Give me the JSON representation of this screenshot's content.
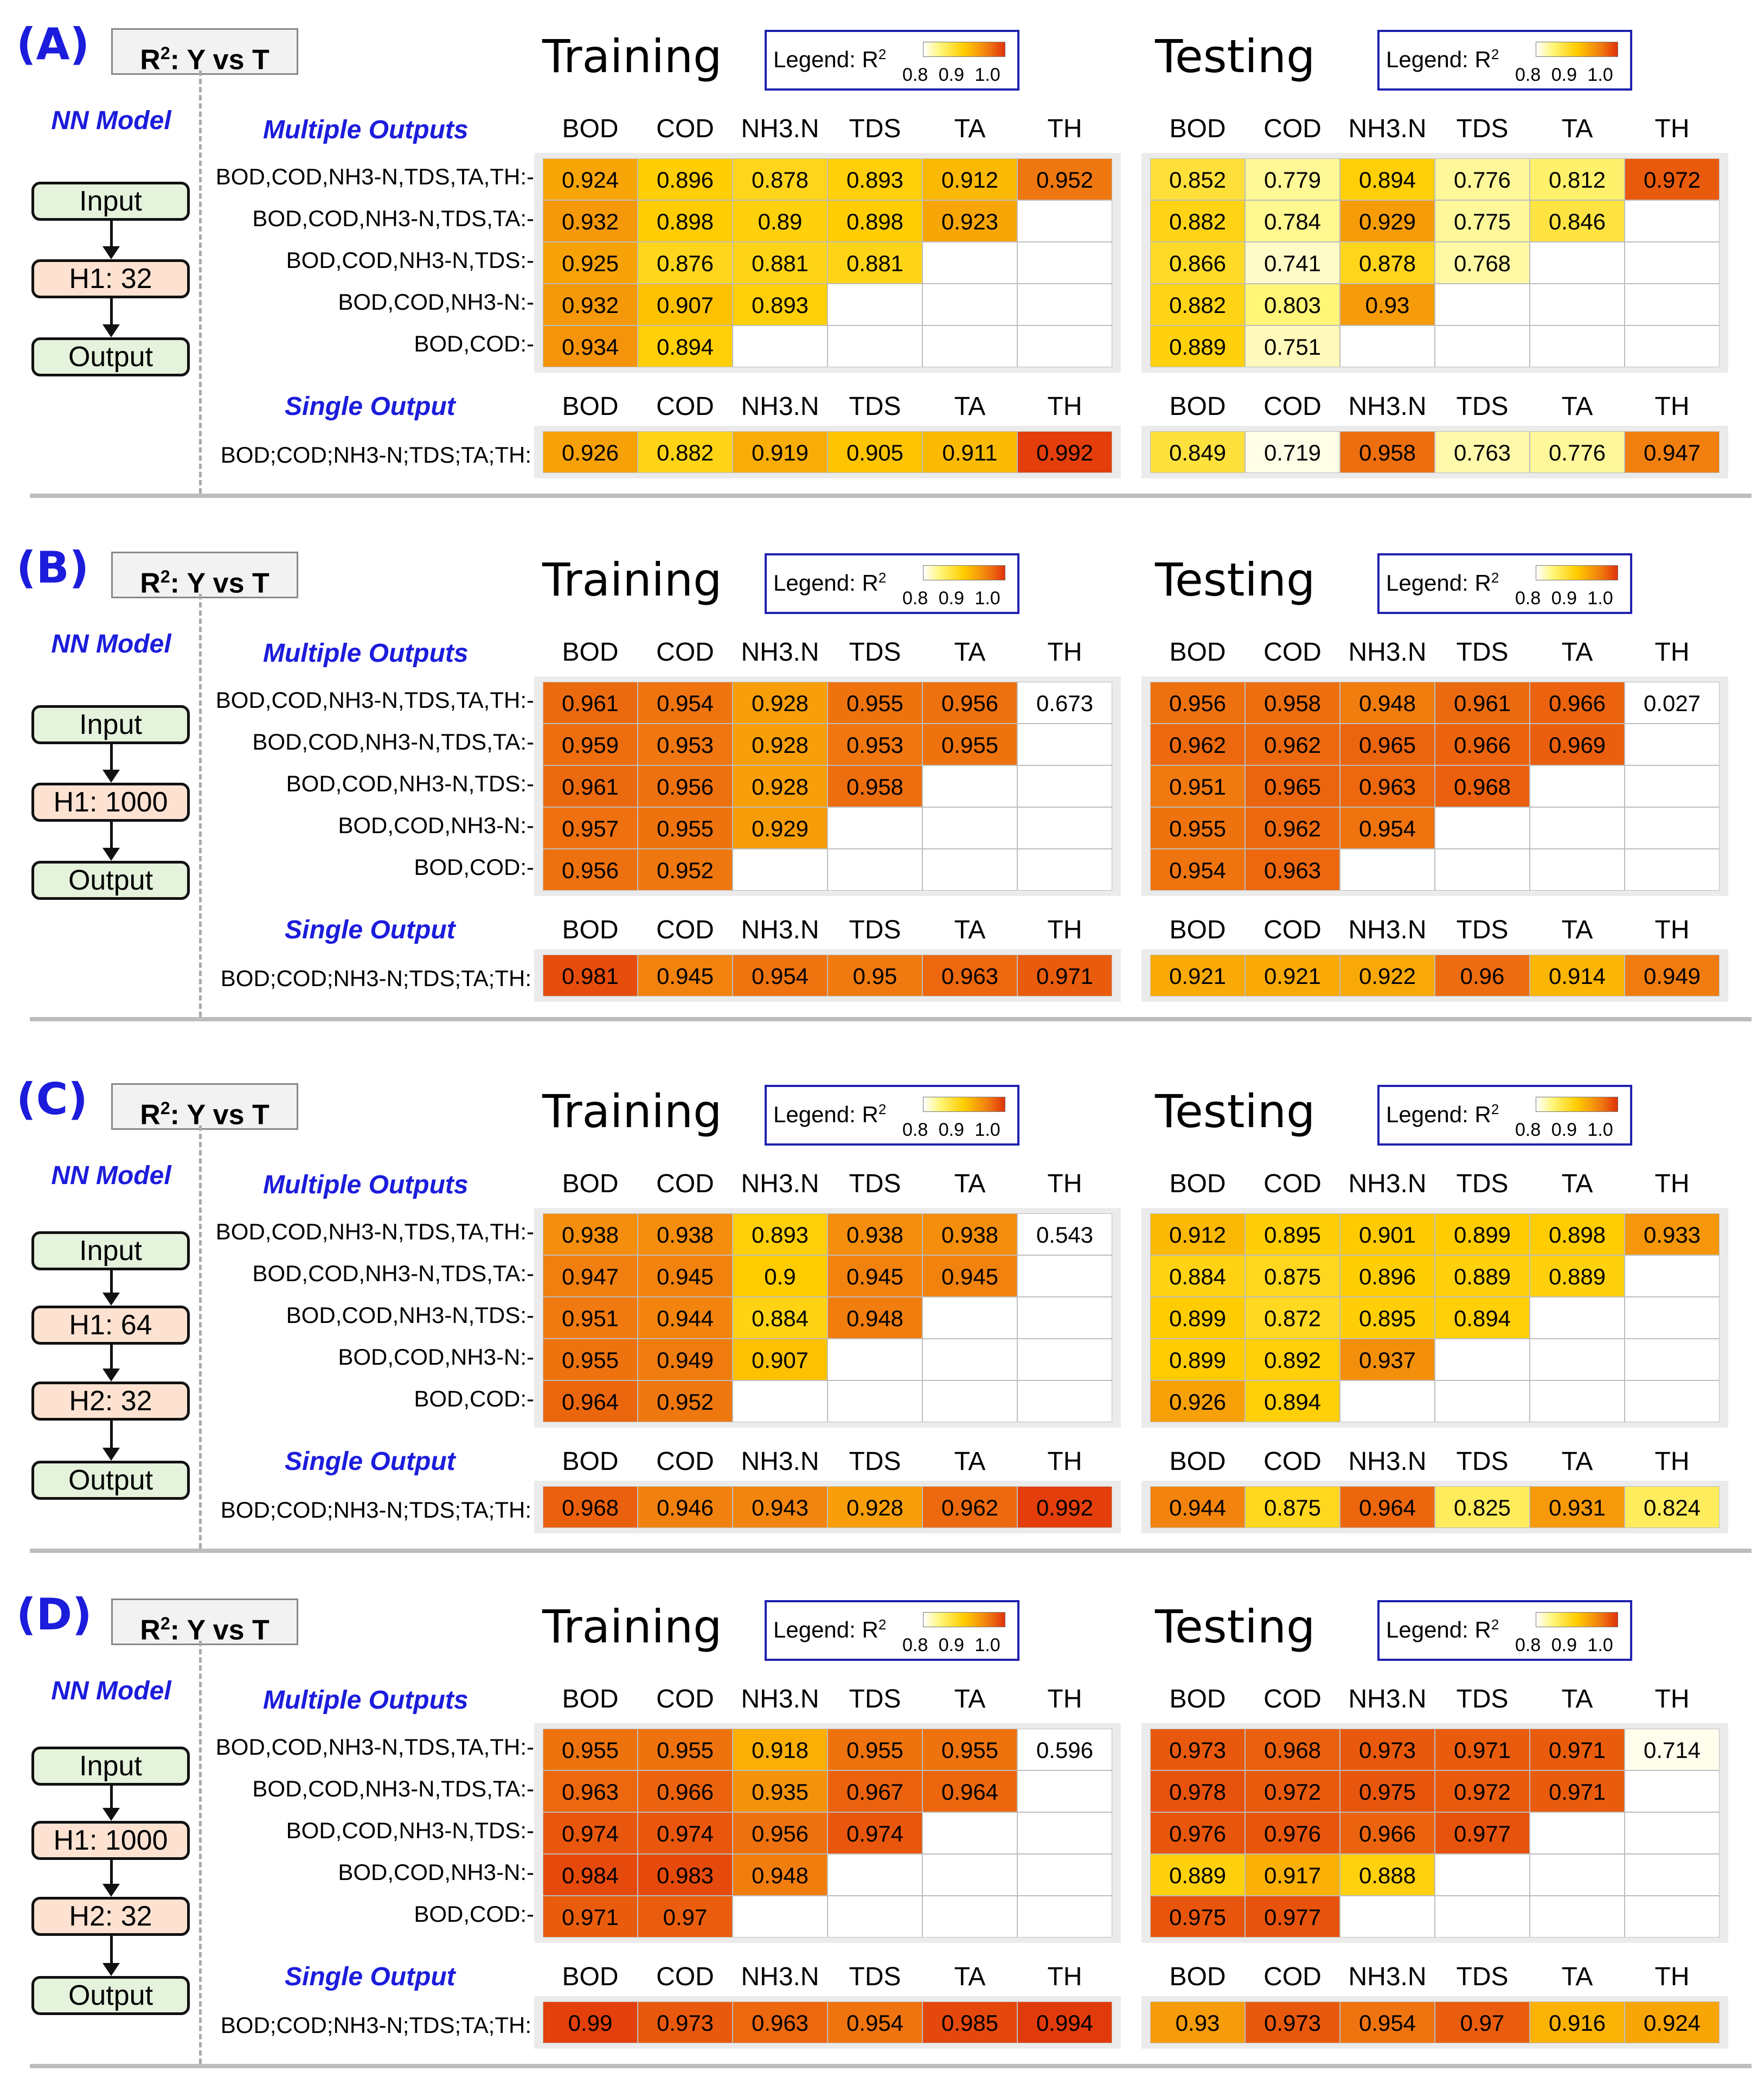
{
  "titles": {
    "yvt": "Y vs T",
    "r2": "R",
    "sup2": "2",
    "nn_model": "NN Model",
    "training": "Training",
    "testing": "Testing",
    "multiple_outputs": "Multiple Outputs",
    "single_output": "Single Output"
  },
  "legend": {
    "text": "Legend: R",
    "sup": "2",
    "ticks": "0.8 0.9 1.0",
    "colors": [
      "#ffffff",
      "#fff67a",
      "#ffcc00",
      "#f07a10",
      "#e0320a"
    ]
  },
  "columns": [
    "BOD",
    "COD",
    "NH3.N",
    "TDS",
    "TA",
    "TH"
  ],
  "multi_row_labels": [
    "BOD,COD,NH3-N,TDS,TA,TH:-",
    "BOD,COD,NH3-N,TDS,TA:-",
    "BOD,COD,NH3-N,TDS:-",
    "BOD,COD,NH3-N:-",
    "BOD,COD:-"
  ],
  "single_row_label": "BOD;COD;NH3-N;TDS;TA;TH:",
  "chart_data": [
    {
      "type": "heatmap",
      "panel": "(A)",
      "model": [
        "Input",
        "H1: 32",
        "Output"
      ],
      "training": {
        "multiple": [
          [
            0.924,
            0.896,
            0.878,
            0.893,
            0.912,
            0.952
          ],
          [
            0.932,
            0.898,
            0.89,
            0.898,
            0.923
          ],
          [
            0.925,
            0.876,
            0.881,
            0.881
          ],
          [
            0.932,
            0.907,
            0.893
          ],
          [
            0.934,
            0.894
          ]
        ],
        "single": [
          0.926,
          0.882,
          0.919,
          0.905,
          0.911,
          0.992
        ]
      },
      "testing": {
        "multiple": [
          [
            0.852,
            0.779,
            0.894,
            0.776,
            0.812,
            0.972
          ],
          [
            0.882,
            0.784,
            0.929,
            0.775,
            0.846
          ],
          [
            0.866,
            0.741,
            0.878,
            0.768
          ],
          [
            0.882,
            0.803,
            0.93
          ],
          [
            0.889,
            0.751
          ]
        ],
        "single": [
          0.849,
          0.719,
          0.958,
          0.763,
          0.776,
          0.947
        ]
      }
    },
    {
      "type": "heatmap",
      "panel": "(B)",
      "model": [
        "Input",
        "H1: 1000",
        "Output"
      ],
      "training": {
        "multiple": [
          [
            0.961,
            0.954,
            0.928,
            0.955,
            0.956,
            0.673
          ],
          [
            0.959,
            0.953,
            0.928,
            0.953,
            0.955
          ],
          [
            0.961,
            0.956,
            0.928,
            0.958
          ],
          [
            0.957,
            0.955,
            0.929
          ],
          [
            0.956,
            0.952
          ]
        ],
        "single": [
          0.981,
          0.945,
          0.954,
          0.95,
          0.963,
          0.971
        ]
      },
      "testing": {
        "multiple": [
          [
            0.956,
            0.958,
            0.948,
            0.961,
            0.966,
            0.027
          ],
          [
            0.962,
            0.962,
            0.965,
            0.966,
            0.969
          ],
          [
            0.951,
            0.965,
            0.963,
            0.968
          ],
          [
            0.955,
            0.962,
            0.954
          ],
          [
            0.954,
            0.963
          ]
        ],
        "single": [
          0.921,
          0.921,
          0.922,
          0.96,
          0.914,
          0.949
        ]
      }
    },
    {
      "type": "heatmap",
      "panel": "(C)",
      "model": [
        "Input",
        "H1: 64",
        "H2: 32",
        "Output"
      ],
      "training": {
        "multiple": [
          [
            0.938,
            0.938,
            0.893,
            0.938,
            0.938,
            0.543
          ],
          [
            0.947,
            0.945,
            0.9,
            0.945,
            0.945
          ],
          [
            0.951,
            0.944,
            0.884,
            0.948
          ],
          [
            0.955,
            0.949,
            0.907
          ],
          [
            0.964,
            0.952
          ]
        ],
        "single": [
          0.968,
          0.946,
          0.943,
          0.928,
          0.962,
          0.992
        ]
      },
      "testing": {
        "multiple": [
          [
            0.912,
            0.895,
            0.901,
            0.899,
            0.898,
            0.933
          ],
          [
            0.884,
            0.875,
            0.896,
            0.889,
            0.889
          ],
          [
            0.899,
            0.872,
            0.895,
            0.894
          ],
          [
            0.899,
            0.892,
            0.937
          ],
          [
            0.926,
            0.894
          ]
        ],
        "single": [
          0.944,
          0.875,
          0.964,
          0.825,
          0.931,
          0.824
        ]
      }
    },
    {
      "type": "heatmap",
      "panel": "(D)",
      "model": [
        "Input",
        "H1: 1000",
        "H2: 32",
        "Output"
      ],
      "training": {
        "multiple": [
          [
            0.955,
            0.955,
            0.918,
            0.955,
            0.955,
            0.596
          ],
          [
            0.963,
            0.966,
            0.935,
            0.967,
            0.964
          ],
          [
            0.974,
            0.974,
            0.956,
            0.974
          ],
          [
            0.984,
            0.983,
            0.948
          ],
          [
            0.971,
            0.97
          ]
        ],
        "single": [
          0.99,
          0.973,
          0.963,
          0.954,
          0.985,
          0.994
        ]
      },
      "testing": {
        "multiple": [
          [
            0.973,
            0.968,
            0.973,
            0.971,
            0.971,
            0.714
          ],
          [
            0.978,
            0.972,
            0.975,
            0.972,
            0.971
          ],
          [
            0.976,
            0.976,
            0.966,
            0.977
          ],
          [
            0.889,
            0.917,
            0.888
          ],
          [
            0.975,
            0.977
          ]
        ],
        "single": [
          0.93,
          0.973,
          0.954,
          0.97,
          0.916,
          0.924
        ]
      }
    }
  ]
}
